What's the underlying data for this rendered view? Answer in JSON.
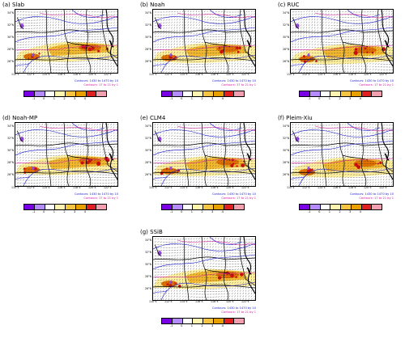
{
  "panels": [
    {
      "id": "slab",
      "title": "(a) Slab"
    },
    {
      "id": "noah",
      "title": "(b) Noah"
    },
    {
      "id": "ruc",
      "title": "(c) RUC"
    },
    {
      "id": "noahmp",
      "title": "(d) Noah-MP"
    },
    {
      "id": "clm4",
      "title": "(e) CLM4"
    },
    {
      "id": "pleimxiu",
      "title": "(f) Pleim-Xiu"
    },
    {
      "id": "ssib",
      "title": "(g) SSiB"
    }
  ],
  "lat_labels": [
    "34°N",
    "32°N",
    "30°N",
    "28°N",
    "26°N"
  ],
  "lon_labels": [
    "110°E",
    "112°E",
    "114°E",
    "116°E",
    "118°E",
    "120°E",
    "122°E"
  ],
  "contour_text_1": "Contours: 1430 to 1470 by 10",
  "contour_text_2": "Contours: 17 to 21 by 1",
  "colorbar_labels": [
    "-1",
    "0",
    "1",
    "2",
    "3",
    "4"
  ],
  "colors": {
    "cbar": [
      "#7a00e6",
      "#b58cff",
      "#ffffff",
      "#fff5b0",
      "#f5c542",
      "#e8a000",
      "#e02020",
      "#f2a0b0"
    ],
    "blue_contour": "#1a1ad0",
    "magenta_contour": "#d01a9a",
    "rain_light": "#fff0a0",
    "rain_mid": "#f2b830",
    "rain_heavy": "#e07000",
    "rain_max": "#d01010"
  }
}
